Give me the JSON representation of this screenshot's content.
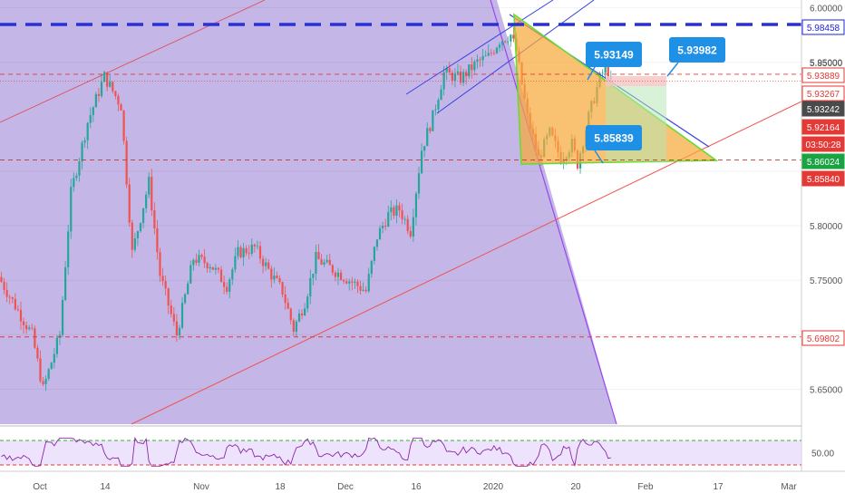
{
  "chart_data": {
    "type": "candlestick",
    "price_axis": {
      "range": [
        5.618,
        6.007
      ],
      "ticks": [
        "6.00000",
        "5.95000",
        "5.85000",
        "5.80000",
        "5.75000",
        "5.70000",
        "5.65000"
      ]
    },
    "time_axis": {
      "ticks": [
        "Oct",
        "14",
        "Nov",
        "18",
        "Dec",
        "16",
        "2020",
        "20",
        "Feb",
        "17",
        "Mar"
      ]
    },
    "price_labels": [
      {
        "text": "5.98458",
        "bg": "#ffffff",
        "color": "#1e22dd",
        "border": "#1e22dd"
      },
      {
        "text": "5.93889",
        "bg": "#ffffff",
        "color": "#e53935",
        "border": "#e53935"
      },
      {
        "text": "5.93267",
        "bg": "#ffffff",
        "color": "#e53935",
        "border": "#e53935"
      },
      {
        "text": "5.93242",
        "bg": "#4a4a4a",
        "color": "#ffffff",
        "border": "#4a4a4a"
      },
      {
        "text": "5.92164",
        "bg": "#e53935",
        "color": "#ffffff",
        "border": "#e53935"
      },
      {
        "text": "03:50:28",
        "bg": "#e53935",
        "color": "#ffffff",
        "border": "#e53935"
      },
      {
        "text": "5.86024",
        "bg": "#1aa342",
        "color": "#ffffff",
        "border": "#1aa342"
      },
      {
        "text": "5.85840",
        "bg": "#e53935",
        "color": "#ffffff",
        "border": "#e53935"
      },
      {
        "text": "5.69802",
        "bg": "#ffffff",
        "color": "#e53935",
        "border": "#e53935"
      }
    ],
    "horizontal_levels": [
      5.98458,
      5.93889,
      5.93267,
      5.86024,
      5.698
    ],
    "callouts": [
      {
        "text": "5.93149"
      },
      {
        "text": "5.93982"
      },
      {
        "text": "5.85839"
      }
    ],
    "indicator": {
      "name": "RSI",
      "tick": "50.00",
      "upper_level": 70,
      "lower_level": 30
    },
    "colors": {
      "up": "#26a69a",
      "down": "#ef5350",
      "level_line": "#e53935",
      "resistance": "#2830d8",
      "triangle_fill": "#f7a93c",
      "triangle_edge": "#66dd33",
      "channel": "#3a44e0",
      "callout": "#1e90e6",
      "shade": "#b3a1e0"
    }
  }
}
